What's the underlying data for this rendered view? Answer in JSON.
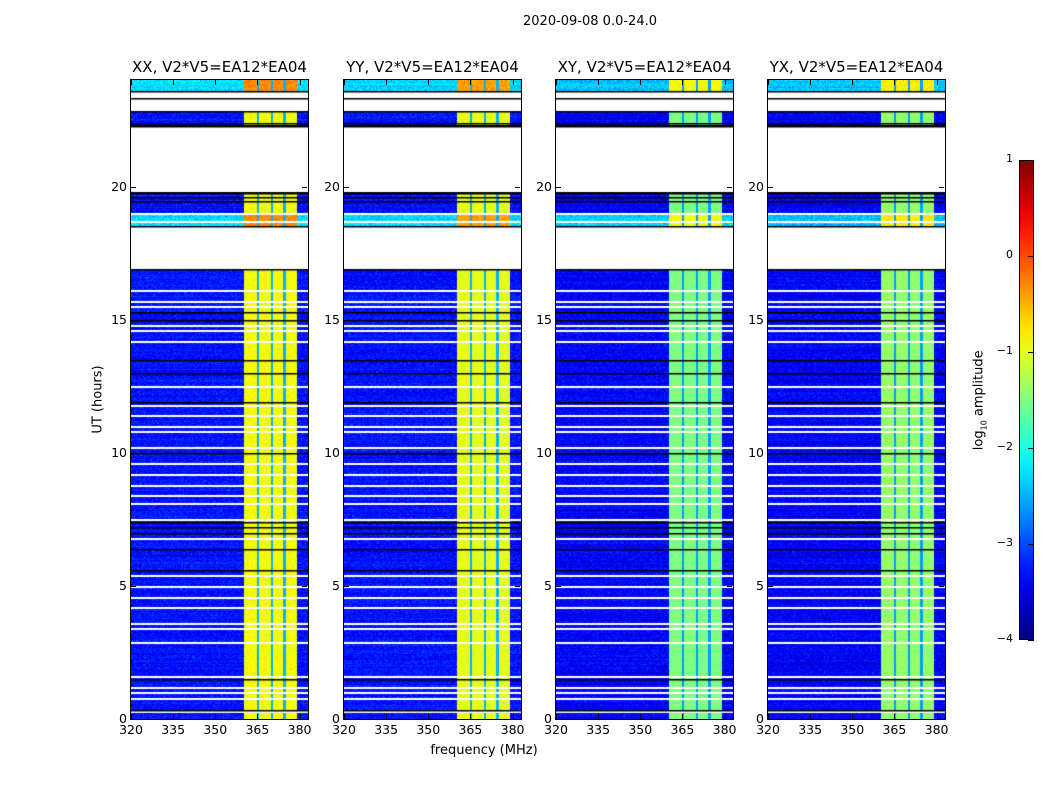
{
  "suptitle": "2020-09-08 0.0-24.0",
  "chart_data": {
    "type": "heatmap",
    "xlabel": "frequency (MHz)",
    "ylabel": "UT (hours)",
    "xlim": [
      320,
      383
    ],
    "ylim": [
      0,
      24
    ],
    "xticks": [
      320,
      335,
      350,
      365,
      380
    ],
    "yticks": [
      0,
      5,
      10,
      15,
      20
    ],
    "colormap": "jet",
    "colorbar": {
      "label_main": "log",
      "label_sub": "10",
      "label_rest": " amplitude",
      "range": [
        -4,
        1
      ],
      "ticks": [
        1,
        0,
        -1,
        -2,
        -3,
        -4
      ]
    },
    "panels": [
      {
        "title": "XX, V2*V5=EA12*EA04",
        "background_level": -3.3,
        "rfi_level": -0.9
      },
      {
        "title": "YY, V2*V5=EA12*EA04",
        "background_level": -3.3,
        "rfi_level": -1.0
      },
      {
        "title": "XY, V2*V5=EA12*EA04",
        "background_level": -3.4,
        "rfi_level": -1.5
      },
      {
        "title": "YX, V2*V5=EA12*EA04",
        "background_level": -3.4,
        "rfi_level": -1.4
      }
    ],
    "rfi_band_mhz": [
      360,
      379
    ],
    "rfi_gaps_mhz": [
      365,
      370,
      374.5
    ],
    "flagged_ut_ranges": [
      [
        22.85,
        23.6
      ],
      [
        19.78,
        22.29
      ],
      [
        16.92,
        18.5
      ]
    ],
    "flagged_ut_lines": [
      16.1,
      15.7,
      15.5,
      14.8,
      14.6,
      14.2,
      12.5,
      11.8,
      11.4,
      11.0,
      10.8,
      10.2,
      9.6,
      9.2,
      8.8,
      8.4,
      8.1,
      7.5,
      6.8,
      5.4,
      5.0,
      4.6,
      4.2,
      3.6,
      3.4,
      2.9,
      1.6,
      1.2,
      1.0,
      0.8,
      0.3,
      19.0,
      18.7
    ],
    "dark_ut_lines": [
      23.34,
      22.4,
      22.3,
      19.75,
      19.6,
      19.45,
      15.3,
      15.0,
      13.5,
      13.0,
      11.9,
      10.0,
      7.4,
      7.2,
      7.0,
      6.4,
      5.6,
      1.5,
      0.35
    ]
  }
}
